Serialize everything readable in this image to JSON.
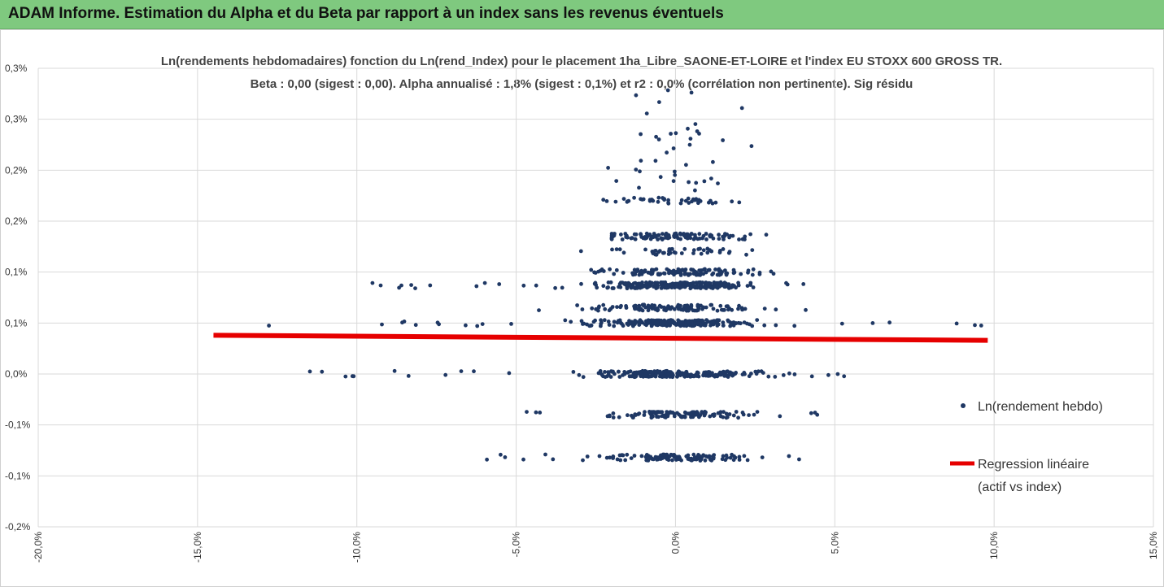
{
  "banner": {
    "title": "ADAM Informe. Estimation du Alpha et du Beta par rapport à un index sans les revenus éventuels"
  },
  "colors": {
    "banner_bg": "#7fc97f",
    "points": "#1f3864",
    "regression": "#e60000",
    "grid": "#d9d9d9"
  },
  "chart_data": {
    "type": "scatter",
    "title_line1": "Ln(rendements hebdomadaires) fonction du Ln(rend_Index) pour le placement 1ha_Libre_SAONE-ET-LOIRE et l'index EU STOXX 600 GROSS TR.",
    "title_line2": "Beta : 0,00 (sigest : 0,00). Alpha annualisé : 1,8% (sigest : 0,1%) et r2 : 0,0% (corrélation non pertinente). Sig résidu",
    "xlabel": "",
    "ylabel": "",
    "x_range": [
      -20,
      15
    ],
    "y_range": [
      -0.15,
      0.3
    ],
    "x_ticks": [
      -20,
      -15,
      -10,
      -5,
      0,
      5,
      10,
      15
    ],
    "x_tick_labels": [
      "-20,0%",
      "-15,0%",
      "-10,0%",
      "-5,0%",
      "0,0%",
      "5,0%",
      "10,0%",
      "15,0%"
    ],
    "y_ticks": [
      0.3,
      0.25,
      0.2,
      0.15,
      0.1,
      0.05,
      0.0,
      -0.05,
      -0.1,
      -0.15
    ],
    "y_tick_labels": [
      "0,3%",
      "0,3%",
      "0,2%",
      "0,2%",
      "0,1%",
      "0,1%",
      "0,0%",
      "-0,1%",
      "-0,1%",
      "-0,2%"
    ],
    "grid": true,
    "legend_position": "right",
    "series": [
      {
        "name": "Ln(rendement hebdo)",
        "kind": "points",
        "note": "clusters of weekly returns at discrete levels",
        "bands": [
          {
            "y": 0.0,
            "x_spread": [
              -11.5,
              6
            ],
            "density": "high"
          },
          {
            "y": -0.04,
            "x_spread": [
              -6.5,
              7
            ],
            "density": "medium"
          },
          {
            "y": -0.082,
            "x_spread": [
              -7.5,
              5.5
            ],
            "density": "medium"
          },
          {
            "y": 0.05,
            "x_spread": [
              -14.5,
              10
            ],
            "density": "high"
          },
          {
            "y": 0.065,
            "x_spread": [
              -5,
              4.5
            ],
            "density": "medium"
          },
          {
            "y": 0.087,
            "x_spread": [
              -10,
              5
            ],
            "density": "high"
          },
          {
            "y": 0.1,
            "x_spread": [
              -3,
              3.5
            ],
            "density": "medium"
          },
          {
            "y": 0.12,
            "x_spread": [
              -3,
              3
            ],
            "density": "low"
          },
          {
            "y": 0.135,
            "x_spread": [
              -2,
              3
            ],
            "density": "medium"
          },
          {
            "y": 0.17,
            "x_spread": [
              -2.5,
              2
            ],
            "density": "low"
          }
        ]
      },
      {
        "name": "Regression linéaire (actif vs index)",
        "legend_line1": "Regression linéaire",
        "legend_line2": "(actif vs index)",
        "kind": "line",
        "points": [
          [
            -14.5,
            0.038
          ],
          [
            9.8,
            0.033
          ]
        ]
      }
    ]
  }
}
